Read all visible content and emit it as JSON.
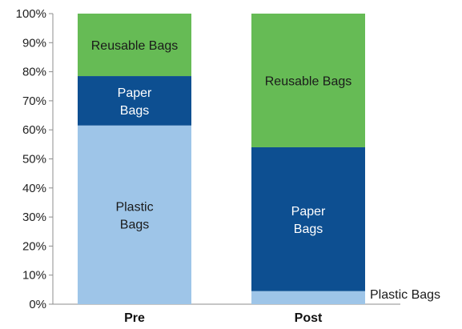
{
  "chart_data": {
    "type": "bar",
    "stacked": true,
    "percent": true,
    "categories": [
      "Pre",
      "Post"
    ],
    "series": [
      {
        "name": "Plastic Bags",
        "values": [
          61.5,
          4.5
        ],
        "color": "#9ec5e8",
        "label_color": "#1a1a1a",
        "labels": [
          [
            "Plastic",
            "Bags"
          ],
          [
            "Plastic Bags"
          ]
        ]
      },
      {
        "name": "Paper Bags",
        "values": [
          17.0,
          49.5
        ],
        "color": "#0d4f91",
        "label_color": "#ffffff",
        "labels": [
          [
            "Paper",
            "Bags"
          ],
          [
            "Paper",
            "Bags"
          ]
        ]
      },
      {
        "name": "Reusable Bags",
        "values": [
          21.5,
          46.0
        ],
        "color": "#66bb55",
        "label_color": "#1a1a1a",
        "labels": [
          [
            "Reusable Bags"
          ],
          [
            "Reusable Bags"
          ]
        ]
      }
    ],
    "ylim": [
      0,
      100
    ],
    "yticks": [
      "0%",
      "10%",
      "20%",
      "30%",
      "40%",
      "50%",
      "60%",
      "70%",
      "80%",
      "90%",
      "100%"
    ],
    "xlabel": "",
    "ylabel": "",
    "grid": false,
    "legend": "none"
  }
}
